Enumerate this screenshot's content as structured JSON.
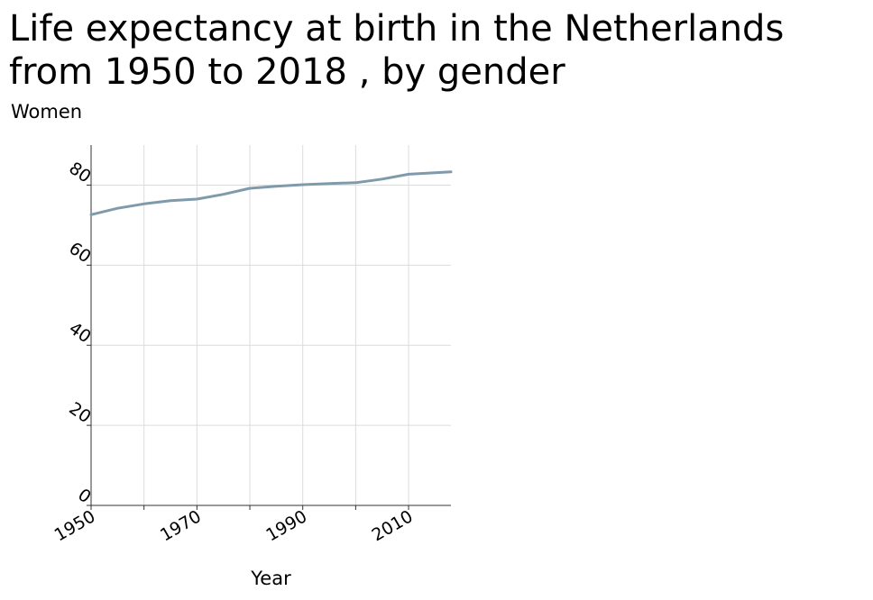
{
  "chart_data": {
    "type": "line",
    "title": "Life expectancy at birth in the Netherlands from 1950 to 2018 , by gender",
    "subtitle": "Women",
    "xlabel": "Year",
    "ylabel": "",
    "xlim": [
      1950,
      2018
    ],
    "ylim": [
      0,
      90
    ],
    "xticks": [
      "1950",
      "1970",
      "1990",
      "2010"
    ],
    "yticks": [
      "0",
      "20",
      "40",
      "60",
      "80"
    ],
    "grid": true,
    "series": [
      {
        "color": "#7f9aab",
        "x": [
          1950,
          1955,
          1960,
          1965,
          1970,
          1975,
          1980,
          1985,
          1990,
          1995,
          2000,
          2005,
          2010,
          2015,
          2018
        ],
        "y": [
          72.6,
          74.2,
          75.3,
          76.1,
          76.5,
          77.7,
          79.2,
          79.7,
          80.1,
          80.4,
          80.6,
          81.5,
          82.7,
          83.1,
          83.3
        ]
      }
    ]
  }
}
